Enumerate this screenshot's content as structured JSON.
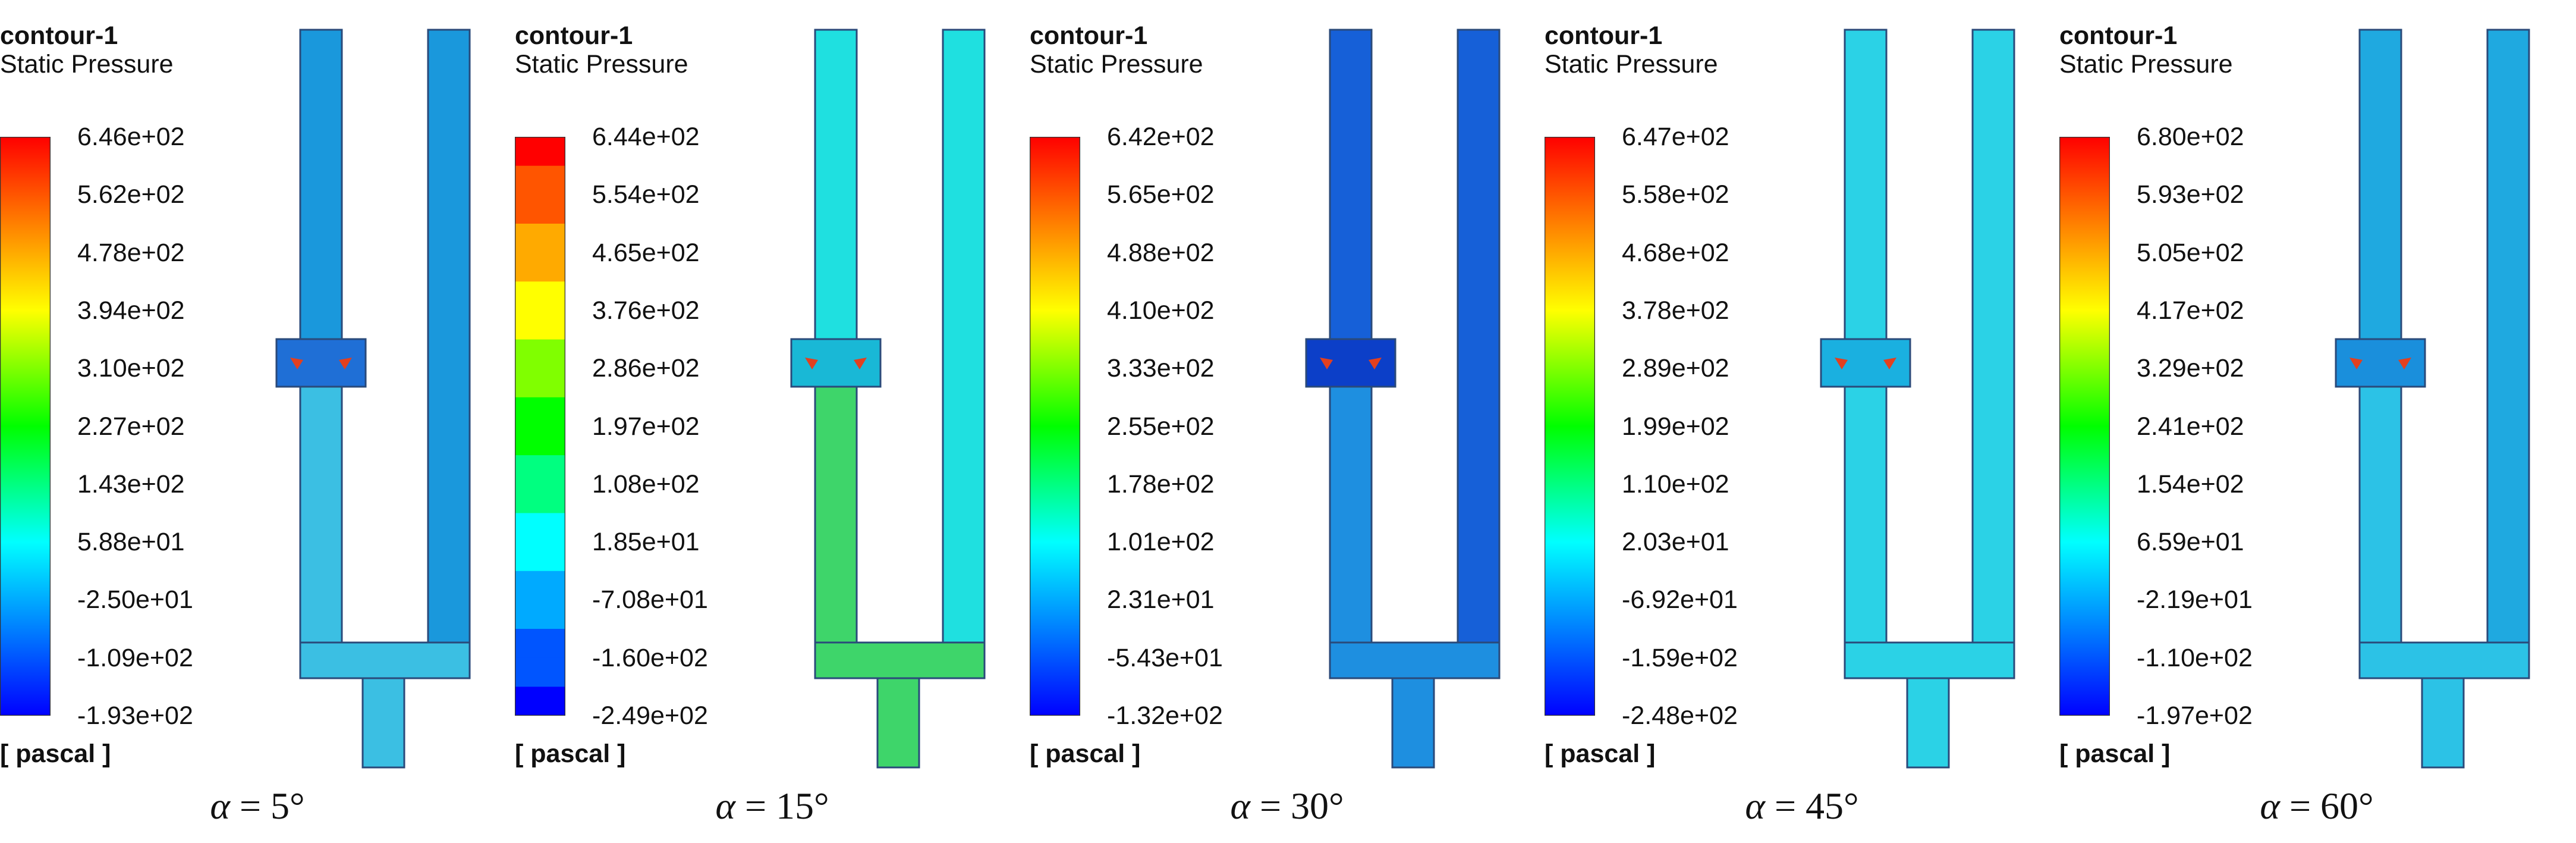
{
  "colors": {
    "rainbow": [
      "#0000ff",
      "#0055ff",
      "#00aaff",
      "#00ffff",
      "#00ff80",
      "#00ff00",
      "#80ff00",
      "#ffff00",
      "#ffaa00",
      "#ff5500",
      "#ff0000"
    ],
    "outline": "#2a4a7a",
    "vortex_arrow": "#e2401f"
  },
  "panels": [
    {
      "title": "contour-1",
      "subtitle": "Static Pressure",
      "unit": "[ pascal ]",
      "alpha_symbol": "α",
      "alpha_text": " = 5°",
      "colorbar_style": "smooth",
      "ticks": [
        "6.46e+02",
        "5.62e+02",
        "4.78e+02",
        "3.94e+02",
        "3.10e+02",
        "2.27e+02",
        "1.43e+02",
        "5.88e+01",
        "-2.50e+01",
        "-1.09e+02",
        "-1.93e+02"
      ],
      "fill_color": "#1a98dc",
      "lower_color": "#3bbfe3",
      "gap_color": "#1f6fd6"
    },
    {
      "title": "contour-1",
      "subtitle": "Static Pressure",
      "unit": "[ pascal ]",
      "alpha_symbol": "α",
      "alpha_text": " = 15°",
      "colorbar_style": "banded",
      "ticks": [
        "6.44e+02",
        "5.54e+02",
        "4.65e+02",
        "3.76e+02",
        "2.86e+02",
        "1.97e+02",
        "1.08e+02",
        "1.85e+01",
        "-7.08e+01",
        "-1.60e+02",
        "-2.49e+02"
      ],
      "fill_color": "#1fe0e0",
      "lower_color": "#3ed56a",
      "gap_color": "#19b8d6"
    },
    {
      "title": "contour-1",
      "subtitle": "Static Pressure",
      "unit": "[ pascal ]",
      "alpha_symbol": "α",
      "alpha_text": " = 30°",
      "colorbar_style": "smooth",
      "ticks": [
        "6.42e+02",
        "5.65e+02",
        "4.88e+02",
        "4.10e+02",
        "3.33e+02",
        "2.55e+02",
        "1.78e+02",
        "1.01e+02",
        "2.31e+01",
        "-5.43e+01",
        "-1.32e+02"
      ],
      "fill_color": "#1660d8",
      "lower_color": "#1e8fe0",
      "gap_color": "#0c3fc8"
    },
    {
      "title": "contour-1",
      "subtitle": "Static Pressure",
      "unit": "[ pascal ]",
      "alpha_symbol": "α",
      "alpha_text": " = 45°",
      "colorbar_style": "smooth",
      "ticks": [
        "6.47e+02",
        "5.58e+02",
        "4.68e+02",
        "3.78e+02",
        "2.89e+02",
        "1.99e+02",
        "1.10e+02",
        "2.03e+01",
        "-6.92e+01",
        "-1.59e+02",
        "-2.48e+02"
      ],
      "fill_color": "#2bd2e6",
      "lower_color": "#2bd2e6",
      "gap_color": "#1ab0e0"
    },
    {
      "title": "contour-1",
      "subtitle": "Static Pressure",
      "unit": "[ pascal ]",
      "alpha_symbol": "α",
      "alpha_text": " = 60°",
      "colorbar_style": "smooth",
      "ticks": [
        "6.80e+02",
        "5.93e+02",
        "5.05e+02",
        "4.17e+02",
        "3.29e+02",
        "2.41e+02",
        "1.54e+02",
        "6.59e+01",
        "-2.19e+01",
        "-1.10e+02",
        "-1.97e+02"
      ],
      "fill_color": "#1fa9e0",
      "lower_color": "#2cc2e6",
      "gap_color": "#1a8fdc"
    }
  ]
}
